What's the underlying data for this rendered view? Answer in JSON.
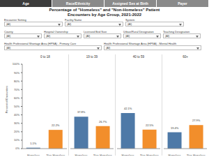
{
  "tabs": [
    "Age",
    "Race/Ethnicity",
    "Assigned Sex at Birth",
    "Payer"
  ],
  "active_tab": "Age",
  "filters": [
    [
      {
        "label": "Encounter Setting",
        "value": "(All)"
      },
      {
        "label": "Facility Name",
        "value": "(All)"
      },
      {
        "label": "System",
        "value": "(All)"
      }
    ],
    [
      {
        "label": "County",
        "value": "(All)"
      },
      {
        "label": "Hospital Ownership",
        "value": "(All)"
      },
      {
        "label": "Licensed Bed Size",
        "value": "(All)"
      },
      {
        "label": "Urban/Rural Designation",
        "value": "(All)"
      },
      {
        "label": "Teaching Designation",
        "value": "(All)"
      }
    ],
    [
      {
        "label": "Health Professional Shortage Area (HPSA) - Primary Care",
        "value": "(All)"
      },
      {
        "label": "Health Professional Shortage Area (HPSA) - Mental Health",
        "value": "(All)"
      }
    ]
  ],
  "chart_data": {
    "type": "bar",
    "title": "Percentage of \"Homeless\" and \"Non-Homeless\" Patient Encounters by Age Group, 2021-2022",
    "y_label": "Percent of Encounters",
    "categories": [
      "0 to 18",
      "19 to 39",
      "40 to 59",
      "60+"
    ],
    "series": [
      {
        "name": "Homeless",
        "color": "#4e79a7",
        "values": [
          1.1,
          37.8,
          42.1,
          19.4
        ],
        "value_labels": [
          "1.1%",
          "37.8%",
          "42.1%",
          "19.4%"
        ]
      },
      {
        "name": "Non-Homeless",
        "color": "#f28e2b",
        "values": [
          22.2,
          26.7,
          22.5,
          27.9
        ],
        "value_labels": [
          "22.2%",
          "26.7%",
          "22.5%",
          "27.9%"
        ]
      }
    ],
    "ylim": [
      0,
      100
    ],
    "yticks": [
      {
        "value": 0,
        "label": "0%"
      },
      {
        "value": 10,
        "label": "10%"
      },
      {
        "value": 20,
        "label": "20%"
      },
      {
        "value": 30,
        "label": "30%"
      },
      {
        "value": 40,
        "label": "40%"
      },
      {
        "value": 50,
        "label": "50%"
      },
      {
        "value": 60,
        "label": "60%"
      },
      {
        "value": 70,
        "label": "70%"
      },
      {
        "value": 80,
        "label": "80%"
      },
      {
        "value": 90,
        "label": "90%"
      },
      {
        "value": 100,
        "label": "100%"
      }
    ],
    "data_labels": true,
    "grid": false
  }
}
